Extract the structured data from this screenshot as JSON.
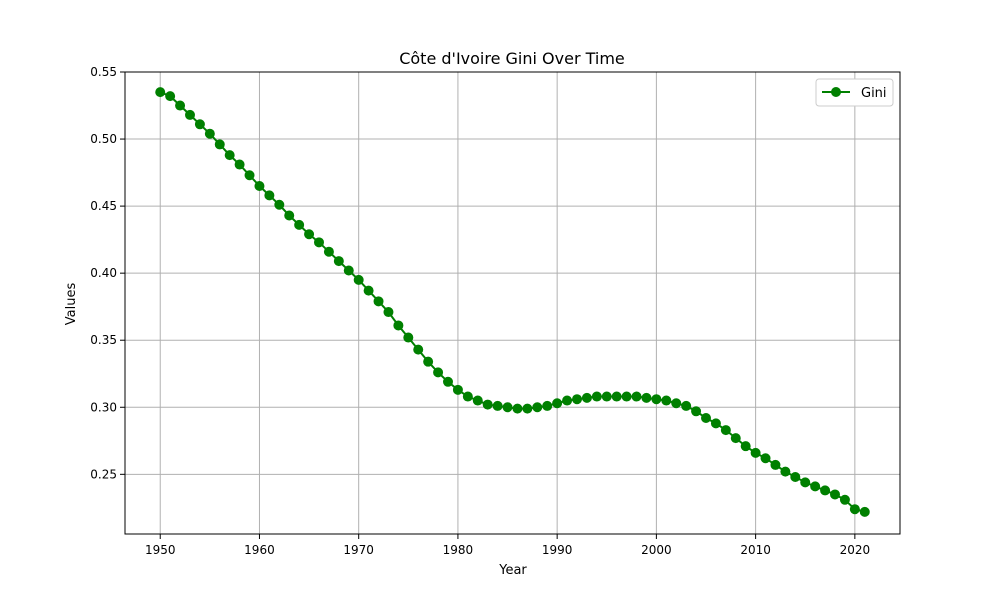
{
  "chart_data": {
    "type": "line",
    "title": "Côte d'Ivoire Gini Over Time",
    "xlabel": "Year",
    "ylabel": "Values",
    "xlim": [
      1946.45,
      2024.55
    ],
    "ylim": [
      0.2055,
      0.55
    ],
    "x_ticks": [
      "1950",
      "1960",
      "1970",
      "1980",
      "1990",
      "2000",
      "2010",
      "2020"
    ],
    "y_ticks": [
      "0.25",
      "0.30",
      "0.35",
      "0.40",
      "0.45",
      "0.50",
      "0.55"
    ],
    "grid": true,
    "legend_position": "top-right",
    "series": [
      {
        "name": "Gini",
        "color": "#008000",
        "marker": "circle",
        "x": [
          1950,
          1951,
          1952,
          1953,
          1954,
          1955,
          1956,
          1957,
          1958,
          1959,
          1960,
          1961,
          1962,
          1963,
          1964,
          1965,
          1966,
          1967,
          1968,
          1969,
          1970,
          1971,
          1972,
          1973,
          1974,
          1975,
          1976,
          1977,
          1978,
          1979,
          1980,
          1981,
          1982,
          1983,
          1984,
          1985,
          1986,
          1987,
          1988,
          1989,
          1990,
          1991,
          1992,
          1993,
          1994,
          1995,
          1996,
          1997,
          1998,
          1999,
          2000,
          2001,
          2002,
          2003,
          2004,
          2005,
          2006,
          2007,
          2008,
          2009,
          2010,
          2011,
          2012,
          2013,
          2014,
          2015,
          2016,
          2017,
          2018,
          2019,
          2020,
          2021
        ],
        "values": [
          0.535,
          0.532,
          0.525,
          0.518,
          0.511,
          0.504,
          0.496,
          0.488,
          0.481,
          0.473,
          0.465,
          0.458,
          0.451,
          0.443,
          0.436,
          0.429,
          0.423,
          0.416,
          0.409,
          0.402,
          0.395,
          0.387,
          0.379,
          0.371,
          0.361,
          0.352,
          0.343,
          0.334,
          0.326,
          0.319,
          0.313,
          0.308,
          0.305,
          0.302,
          0.301,
          0.3,
          0.299,
          0.299,
          0.3,
          0.301,
          0.303,
          0.305,
          0.306,
          0.307,
          0.308,
          0.308,
          0.308,
          0.308,
          0.308,
          0.307,
          0.306,
          0.305,
          0.303,
          0.301,
          0.297,
          0.292,
          0.288,
          0.283,
          0.277,
          0.271,
          0.266,
          0.262,
          0.257,
          0.252,
          0.248,
          0.244,
          0.241,
          0.238,
          0.235,
          0.231,
          0.224,
          0.222
        ]
      }
    ]
  }
}
